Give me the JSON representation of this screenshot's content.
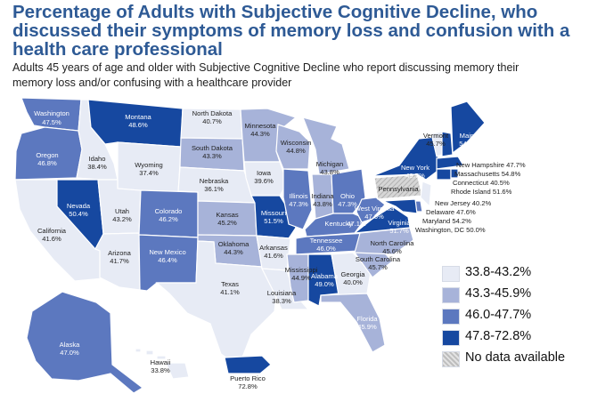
{
  "title": "Percentage of Adults with Subjective Cognitive Decline, who discussed their symptoms of memory loss and confusion with a health care professional",
  "subtitle": "Adults 45 years of age and older with Subjective Cognitive Decline who report discussing memory their memory loss and/or confusing with a healthcare provider",
  "colors": {
    "c1": "#e7ebf5",
    "c2": "#a7b3d9",
    "c3": "#5c78bf",
    "c4": "#1648a0",
    "nodata": "#c9c9c9"
  },
  "legend": [
    {
      "label": "33.8-43.2%",
      "color": "#e7ebf5"
    },
    {
      "label": "43.3-45.9%",
      "color": "#a7b3d9"
    },
    {
      "label": "46.0-47.7%",
      "color": "#5c78bf"
    },
    {
      "label": "47.8-72.8%",
      "color": "#1648a0"
    },
    {
      "label": "No data available",
      "color": "#c9c9c9"
    }
  ],
  "states": {
    "WA": {
      "name": "Washington",
      "value": "47.5%"
    },
    "OR": {
      "name": "Oregon",
      "value": "46.8%"
    },
    "CA": {
      "name": "California",
      "value": "41.6%"
    },
    "NV": {
      "name": "Nevada",
      "value": "50.4%"
    },
    "ID": {
      "name": "Idaho",
      "value": "38.4%"
    },
    "MT": {
      "name": "Montana",
      "value": "48.6%"
    },
    "WY": {
      "name": "Wyoming",
      "value": "37.4%"
    },
    "UT": {
      "name": "Utah",
      "value": "43.2%"
    },
    "AZ": {
      "name": "Arizona",
      "value": "41.7%"
    },
    "CO": {
      "name": "Colorado",
      "value": "46.2%"
    },
    "NM": {
      "name": "New Mexico",
      "value": "46.4%"
    },
    "ND": {
      "name": "North Dakota",
      "value": "40.7%"
    },
    "SD": {
      "name": "South Dakota",
      "value": "43.3%"
    },
    "NE": {
      "name": "Nebraska",
      "value": "36.1%"
    },
    "KS": {
      "name": "Kansas",
      "value": "45.2%"
    },
    "OK": {
      "name": "Oklahoma",
      "value": "44.3%"
    },
    "TX": {
      "name": "Texas",
      "value": "41.1%"
    },
    "MN": {
      "name": "Minnesota",
      "value": "44.3%"
    },
    "IA": {
      "name": "Iowa",
      "value": "39.6%"
    },
    "MO": {
      "name": "Missouri",
      "value": "51.5%"
    },
    "AR": {
      "name": "Arkansas",
      "value": "41.6%"
    },
    "LA": {
      "name": "Louisiana",
      "value": "38.3%"
    },
    "WI": {
      "name": "Wisconsin",
      "value": "44.8%"
    },
    "IL": {
      "name": "Illinois",
      "value": "47.3%"
    },
    "MI": {
      "name": "Michigan",
      "value": "43.8%"
    },
    "IN": {
      "name": "Indiana",
      "value": "43.8%"
    },
    "OH": {
      "name": "Ohio",
      "value": "47.3%"
    },
    "KY": {
      "name": "Kentucky",
      "value": "47.1%"
    },
    "TN": {
      "name": "Tennessee",
      "value": "46.0%"
    },
    "MS": {
      "name": "Mississippi",
      "value": "44.9%"
    },
    "AL": {
      "name": "Alabama",
      "value": "49.0%"
    },
    "GA": {
      "name": "Georgia",
      "value": "40.0%"
    },
    "FL": {
      "name": "Florida",
      "value": "45.9%"
    },
    "SC": {
      "name": "South Carolina",
      "value": "45.7%"
    },
    "NC": {
      "name": "North Carolina",
      "value": "45.6%"
    },
    "VA": {
      "name": "Virginia",
      "value": "51.7%"
    },
    "WV": {
      "name": "West Virginia",
      "value": "47.6%"
    },
    "PA": {
      "name": "Pennsylvania",
      "value": ""
    },
    "NY": {
      "name": "New York",
      "value": "49.7%"
    },
    "VT": {
      "name": "Vermont",
      "value": "45.7%"
    },
    "ME": {
      "name": "Maine",
      "value": "54.4%"
    },
    "NH": {
      "name": "New Hampshire 47.7%"
    },
    "MA": {
      "name": "Massachusetts 54.8%"
    },
    "CT": {
      "name": "Connecticut 40.5%"
    },
    "RI": {
      "name": "Rhode Island 51.6%"
    },
    "NJ": {
      "name": "New Jersey 40.2%"
    },
    "DE": {
      "name": "Delaware 47.6%"
    },
    "MD": {
      "name": "Maryland 54.2%"
    },
    "DC": {
      "name": "Washington, DC 50.0%"
    },
    "AK": {
      "name": "Alaska",
      "value": "47.0%"
    },
    "HI": {
      "name": "Hawaii",
      "value": "33.8%"
    },
    "PR": {
      "name": "Puerto Rico",
      "value": "72.8%"
    }
  }
}
